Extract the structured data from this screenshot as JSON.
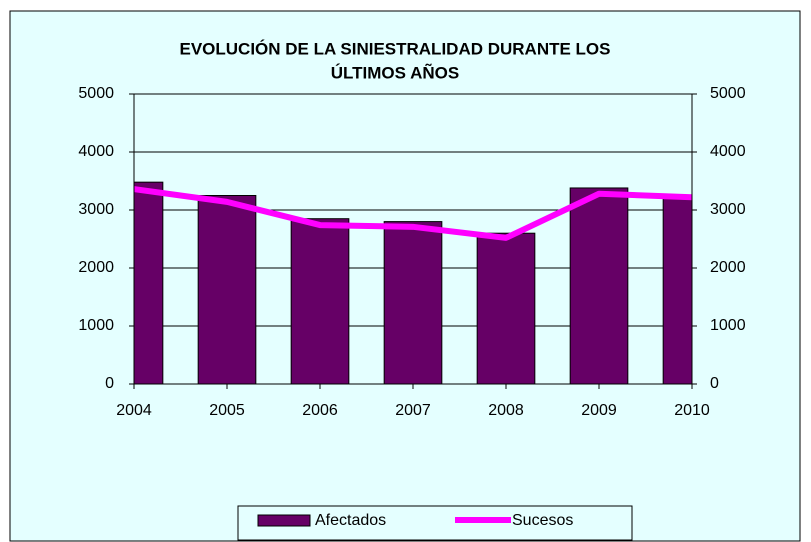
{
  "chart_data": {
    "type": "bar",
    "title": [
      "EVOLUCIÓN DE LA SINIESTRALIDAD DURANTE LOS",
      "ÚLTIMOS AÑOS"
    ],
    "categories": [
      "2004",
      "2005",
      "2006",
      "2007",
      "2008",
      "2009",
      "2010"
    ],
    "series": [
      {
        "name": "Afectados",
        "type": "bar",
        "color": "#660066",
        "values": [
          3480,
          3250,
          2850,
          2800,
          2600,
          3380,
          3250
        ]
      },
      {
        "name": "Sucesos",
        "type": "line",
        "color": "#ff00ff",
        "values": [
          3360,
          3140,
          2740,
          2710,
          2520,
          3280,
          3220
        ]
      }
    ],
    "ylim": [
      0,
      5000
    ],
    "yticks": [
      0,
      1000,
      2000,
      3000,
      4000,
      5000
    ],
    "y2lim": [
      0,
      5000
    ],
    "y2ticks": [
      0,
      1000,
      2000,
      3000,
      4000,
      5000
    ],
    "grid": true,
    "legend": "bottom"
  }
}
